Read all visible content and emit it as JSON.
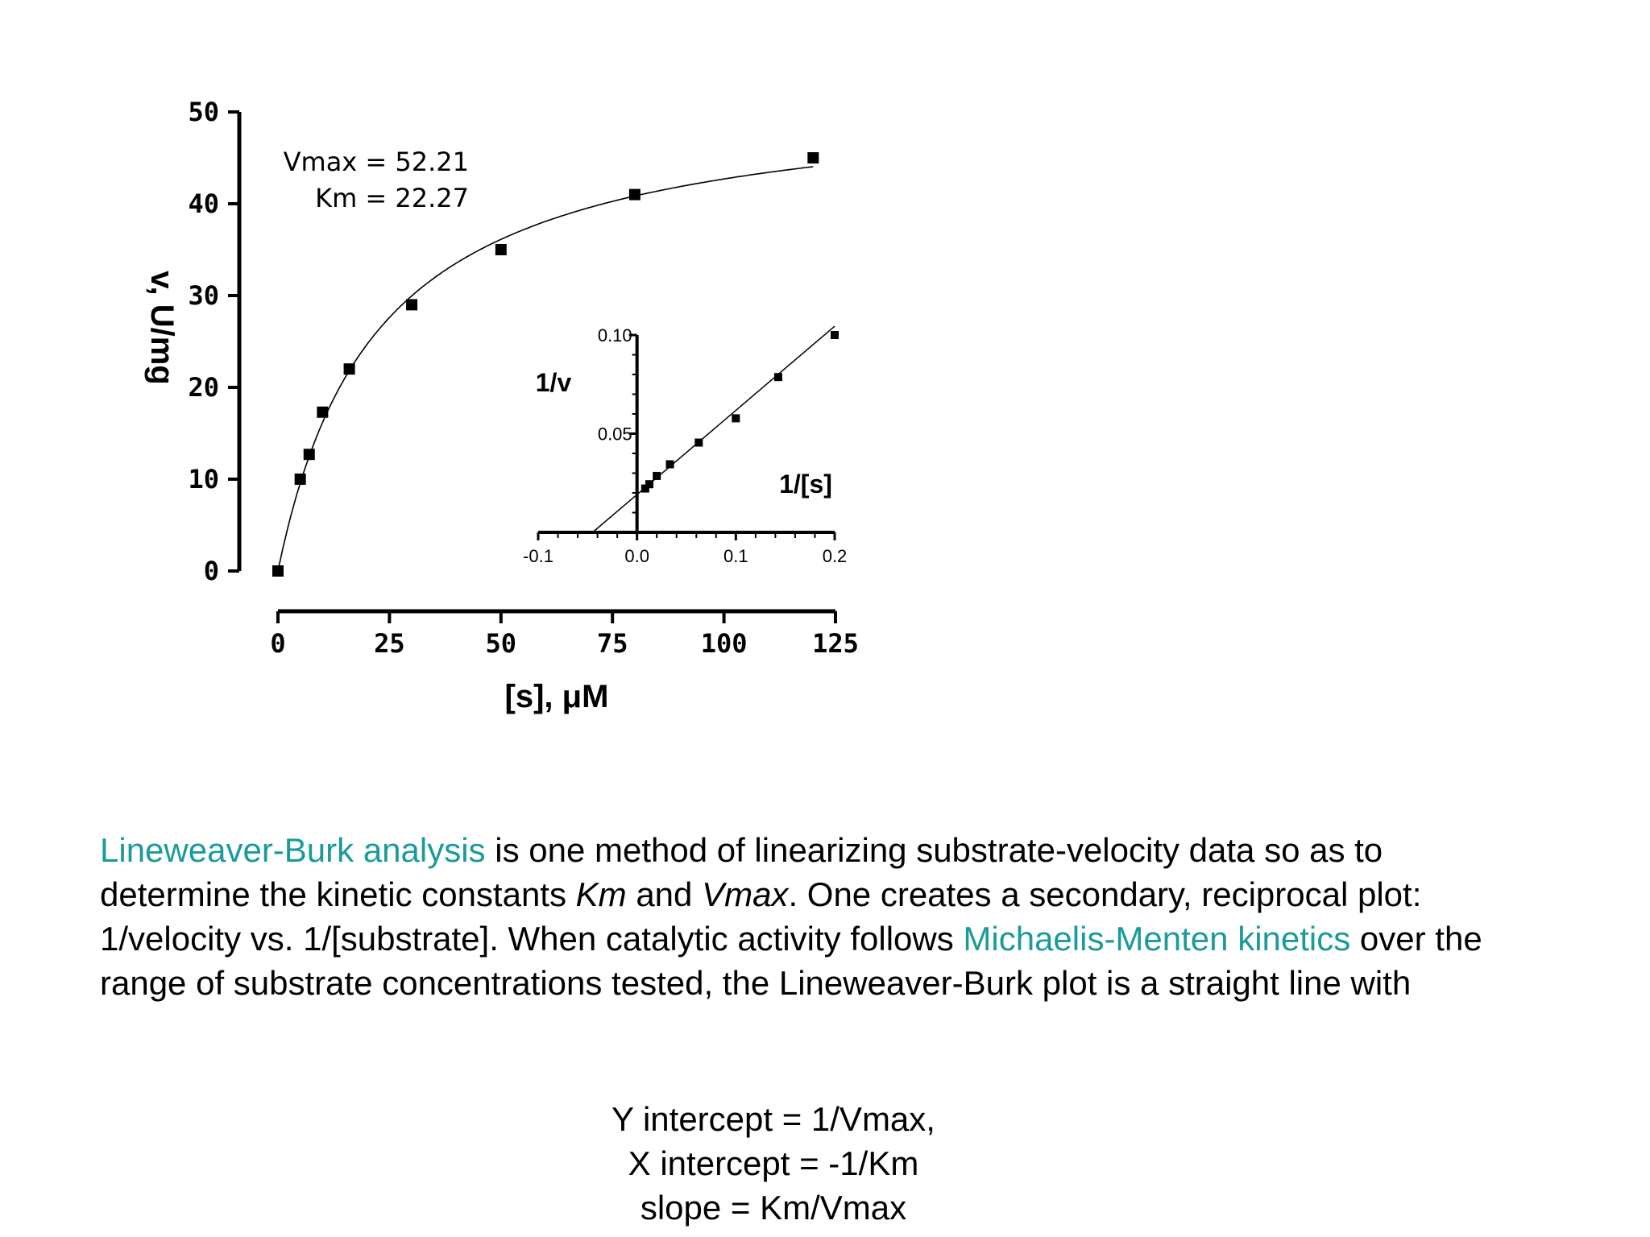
{
  "chart_data": [
    {
      "type": "scatter",
      "xlabel": "[s], μM",
      "ylabel": "v, U/mg",
      "xlim": [
        0,
        125
      ],
      "ylim": [
        0,
        50
      ],
      "x_ticks": [
        "0",
        "25",
        "50",
        "75",
        "100",
        "125"
      ],
      "y_ticks": [
        "0",
        "10",
        "20",
        "30",
        "40",
        "50"
      ],
      "annotations": [
        "Vmax = 52.21",
        "Km = 22.27"
      ],
      "fit": {
        "model": "michaelis-menten",
        "Vmax": 52.21,
        "Km": 22.27
      },
      "series": [
        {
          "x": [
            0,
            5,
            7,
            10,
            16,
            30,
            50,
            80,
            120
          ],
          "y": [
            0,
            10,
            12.7,
            17.3,
            22,
            29,
            35,
            41,
            45
          ]
        }
      ]
    },
    {
      "type": "scatter",
      "xlabel": "1/[s]",
      "ylabel": "1/v",
      "xlim": [
        -0.1,
        0.2
      ],
      "ylim": [
        0,
        0.1
      ],
      "x_ticks": [
        "-0.1",
        "0.0",
        "0.1",
        "0.2"
      ],
      "y_ticks": [
        "0.05",
        "0.10"
      ],
      "fit": {
        "model": "linear",
        "slope": 0.4265,
        "intercept": 0.01915
      },
      "series": [
        {
          "x": [
            0.0083,
            0.0125,
            0.02,
            0.0333,
            0.0625,
            0.1,
            0.1429,
            0.2
          ],
          "y": [
            0.0222,
            0.0244,
            0.0286,
            0.0345,
            0.0455,
            0.0578,
            0.0787,
            0.1
          ]
        }
      ]
    }
  ],
  "text": {
    "link1": "Lineweaver-Burk analysis",
    "p1": " is one method of linearizing substrate-velocity data so as to determine the kinetic constants ",
    "km": "Km",
    "p2": " and ",
    "vmax": "Vmax",
    "p3": ". One creates a secondary, reciprocal plot: 1/velocity vs. 1/[substrate]. When catalytic activity follows ",
    "link2": "Michaelis-Menten kinetics",
    "p4": " over the range of substrate concentrations tested, the Lineweaver-Burk plot is a straight line with"
  },
  "equations": {
    "line1": "Y intercept = 1/Vmax,",
    "line2": "X intercept = -1/Km",
    "line3": "slope = Km/Vmax"
  }
}
